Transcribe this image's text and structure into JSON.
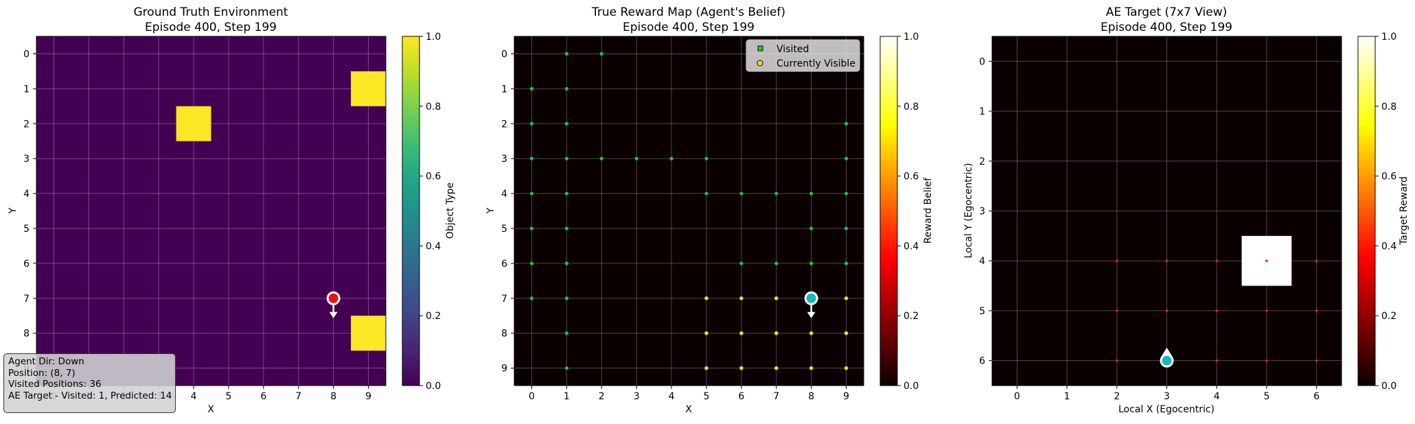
{
  "colors": {
    "viridis_low": "#440154",
    "viridis_high": "#fde725",
    "hot_low": "#0b0000",
    "visited_marker": "#22c33a",
    "visible_marker": "#e3e21c",
    "agent_gt": "#ee1111",
    "agent_belief": "#18b8b8",
    "target_dot": "#ff1a1a"
  },
  "chart_data": [
    {
      "type": "heatmap",
      "title": "Ground Truth Environment",
      "subtitle": "Episode 400, Step 199",
      "xlabel": "X",
      "ylabel": "Y",
      "x_ticks": [
        "0",
        "1",
        "2",
        "3",
        "4",
        "5",
        "6",
        "7",
        "8",
        "9"
      ],
      "y_ticks": [
        "0",
        "1",
        "2",
        "3",
        "4",
        "5",
        "6",
        "7",
        "8",
        "9"
      ],
      "colorbar": {
        "label": "Object Type",
        "ticks": [
          "0.0",
          "0.2",
          "0.4",
          "0.6",
          "0.8",
          "1.0"
        ],
        "range": [
          0,
          1
        ],
        "colormap": "viridis"
      },
      "grid": true,
      "cells_value_1": [
        [
          9,
          1
        ],
        [
          4,
          2
        ],
        [
          9,
          8
        ]
      ],
      "agent": {
        "x": 8,
        "y": 7,
        "direction": "Down"
      }
    },
    {
      "type": "heatmap",
      "title": "True Reward Map (Agent's Belief)",
      "subtitle": "Episode 400, Step 199",
      "xlabel": "X",
      "ylabel": "Y",
      "x_ticks": [
        "0",
        "1",
        "2",
        "3",
        "4",
        "5",
        "6",
        "7",
        "8",
        "9"
      ],
      "y_ticks": [
        "0",
        "1",
        "2",
        "3",
        "4",
        "5",
        "6",
        "7",
        "8",
        "9"
      ],
      "colorbar": {
        "label": "Reward Belief",
        "ticks": [
          "0.0",
          "0.2",
          "0.4",
          "0.6",
          "0.8",
          "1.0"
        ],
        "range": [
          0,
          1
        ],
        "colormap": "hot"
      },
      "grid": true,
      "legend": {
        "placement": "top-right",
        "entries": [
          "Visited",
          "Currently Visible"
        ]
      },
      "visited": [
        [
          1,
          0
        ],
        [
          2,
          0
        ],
        [
          0,
          1
        ],
        [
          1,
          1
        ],
        [
          0,
          2
        ],
        [
          1,
          2
        ],
        [
          9,
          2
        ],
        [
          0,
          3
        ],
        [
          1,
          3
        ],
        [
          2,
          3
        ],
        [
          3,
          3
        ],
        [
          4,
          3
        ],
        [
          5,
          3
        ],
        [
          9,
          3
        ],
        [
          0,
          4
        ],
        [
          1,
          4
        ],
        [
          5,
          4
        ],
        [
          6,
          4
        ],
        [
          7,
          4
        ],
        [
          8,
          4
        ],
        [
          9,
          4
        ],
        [
          0,
          5
        ],
        [
          1,
          5
        ],
        [
          8,
          5
        ],
        [
          9,
          5
        ],
        [
          0,
          6
        ],
        [
          1,
          6
        ],
        [
          6,
          6
        ],
        [
          7,
          6
        ],
        [
          8,
          6
        ],
        [
          9,
          6
        ],
        [
          0,
          7
        ],
        [
          1,
          7
        ],
        [
          1,
          8
        ],
        [
          1,
          9
        ]
      ],
      "visible": [
        [
          5,
          7
        ],
        [
          6,
          7
        ],
        [
          7,
          7
        ],
        [
          9,
          7
        ],
        [
          5,
          8
        ],
        [
          6,
          8
        ],
        [
          7,
          8
        ],
        [
          8,
          8
        ],
        [
          9,
          8
        ],
        [
          5,
          9
        ],
        [
          6,
          9
        ],
        [
          7,
          9
        ],
        [
          8,
          9
        ],
        [
          9,
          9
        ]
      ],
      "agent": {
        "x": 8,
        "y": 7,
        "direction": "Down"
      }
    },
    {
      "type": "heatmap",
      "title": "AE Target (7x7 View)",
      "subtitle": "Episode 400, Step 199",
      "xlabel": "Local X (Egocentric)",
      "ylabel": "Local Y (Egocentric)",
      "x_ticks": [
        "0",
        "1",
        "2",
        "3",
        "4",
        "5",
        "6"
      ],
      "y_ticks": [
        "0",
        "1",
        "2",
        "3",
        "4",
        "5",
        "6"
      ],
      "colorbar": {
        "label": "Target Reward",
        "ticks": [
          "0.0",
          "0.2",
          "0.4",
          "0.6",
          "0.8",
          "1.0"
        ],
        "range": [
          0,
          1
        ],
        "colormap": "hot"
      },
      "grid": true,
      "cells_value_1": [
        [
          5,
          4
        ]
      ],
      "target_dots": [
        [
          2,
          4
        ],
        [
          3,
          4
        ],
        [
          4,
          4
        ],
        [
          5,
          4
        ],
        [
          6,
          4
        ],
        [
          2,
          5
        ],
        [
          3,
          5
        ],
        [
          4,
          5
        ],
        [
          5,
          5
        ],
        [
          6,
          5
        ],
        [
          2,
          6
        ],
        [
          4,
          6
        ],
        [
          5,
          6
        ],
        [
          6,
          6
        ]
      ],
      "agent": {
        "x": 3,
        "y": 6,
        "direction": "Up"
      }
    }
  ],
  "info_box": {
    "line1": "Agent Dir: Down",
    "line2": "Position: (8, 7)",
    "line3": "Visited Positions: 36",
    "line4": "AE Target - Visited: 1, Predicted: 14"
  }
}
